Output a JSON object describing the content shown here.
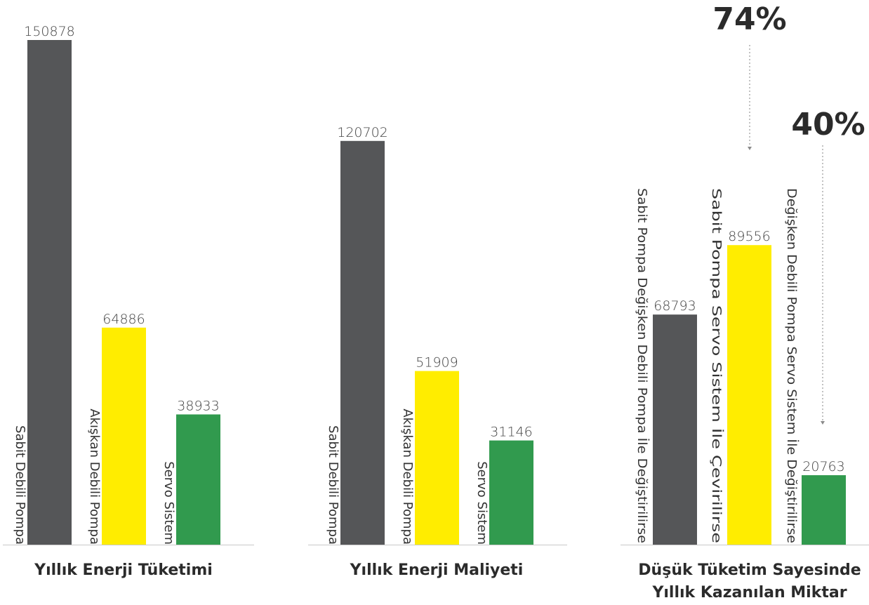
{
  "chart_data": [
    {
      "type": "bar",
      "title": "Yıllık Enerji Tüketimi",
      "categories": [
        "Sabit Debili Pompa",
        "Akışkan Debili Pompa",
        "Servo Sistem"
      ],
      "values": [
        150878,
        64886,
        38933
      ],
      "colors": [
        "#555658",
        "#FFED00",
        "#319A4E"
      ]
    },
    {
      "type": "bar",
      "title": "Yıllık Enerji Maliyeti",
      "categories": [
        "Sabit Debili Pompa",
        "Akışkan Debili Pompa",
        "Servo Sistem"
      ],
      "values": [
        120702,
        51909,
        31146
      ],
      "colors": [
        "#555658",
        "#FFED00",
        "#319A4E"
      ]
    },
    {
      "type": "bar",
      "title": "Düşük Tüketim Sayesinde Yıllık Kazanılan Miktar",
      "title_lines": [
        "Düşük Tüketim Sayesinde",
        "Yıllık Kazanılan Miktar"
      ],
      "categories": [
        "Sabit Pompa Değişken Debili Pompa İle Değiştirilirse",
        "Sabit Pompa Servo Sistem İle Çevirilirse",
        "Değişken Debili Pompa Servo Sistem İle Değiştirilirse"
      ],
      "values": [
        68793,
        89556,
        20763
      ],
      "colors": [
        "#555658",
        "#FFED00",
        "#319A4E"
      ],
      "annotations": [
        "74%",
        "40%"
      ]
    }
  ]
}
